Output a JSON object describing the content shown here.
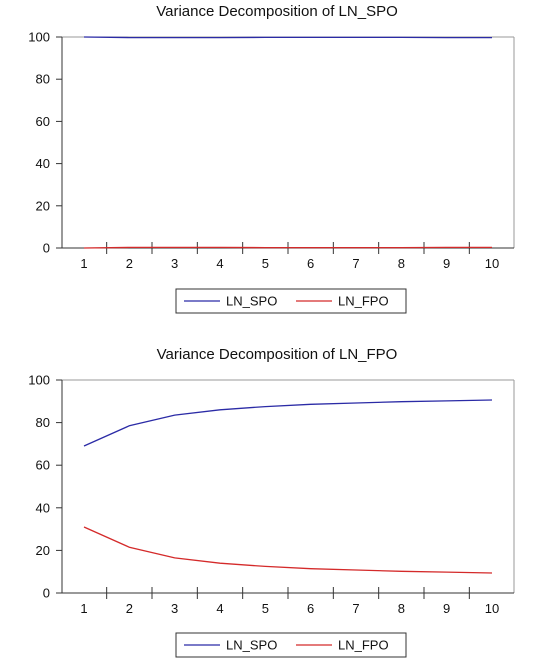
{
  "colors": {
    "series1": "#2b2ba6",
    "series2": "#d42a2a",
    "axis": "#333333",
    "frame": "#9a9a9a"
  },
  "chart_data": [
    {
      "type": "line",
      "title": "Variance Decomposition of LN_SPO",
      "xlabel": "",
      "ylabel": "",
      "x": [
        1,
        2,
        3,
        4,
        5,
        6,
        7,
        8,
        9,
        10
      ],
      "xticks": [
        "1",
        "2",
        "3",
        "4",
        "5",
        "6",
        "7",
        "8",
        "9",
        "10"
      ],
      "yticks": [
        "0",
        "20",
        "40",
        "60",
        "80",
        "100"
      ],
      "ylim": [
        0,
        100
      ],
      "grid": false,
      "legend": "bottom",
      "series": [
        {
          "name": "LN_SPO",
          "values": [
            100.0,
            99.7,
            99.7,
            99.7,
            99.8,
            99.8,
            99.8,
            99.8,
            99.7,
            99.7
          ]
        },
        {
          "name": "LN_FPO",
          "values": [
            0.0,
            0.3,
            0.3,
            0.3,
            0.2,
            0.2,
            0.2,
            0.2,
            0.3,
            0.3
          ]
        }
      ]
    },
    {
      "type": "line",
      "title": "Variance Decomposition of LN_FPO",
      "xlabel": "",
      "ylabel": "",
      "x": [
        1,
        2,
        3,
        4,
        5,
        6,
        7,
        8,
        9,
        10
      ],
      "xticks": [
        "1",
        "2",
        "3",
        "4",
        "5",
        "6",
        "7",
        "8",
        "9",
        "10"
      ],
      "yticks": [
        "0",
        "20",
        "40",
        "60",
        "80",
        "100"
      ],
      "ylim": [
        0,
        100
      ],
      "grid": false,
      "legend": "bottom",
      "series": [
        {
          "name": "LN_SPO",
          "values": [
            69.0,
            78.5,
            83.5,
            86.0,
            87.5,
            88.6,
            89.2,
            89.8,
            90.2,
            90.6
          ]
        },
        {
          "name": "LN_FPO",
          "values": [
            31.0,
            21.5,
            16.5,
            14.0,
            12.5,
            11.4,
            10.8,
            10.2,
            9.8,
            9.4
          ]
        }
      ]
    }
  ]
}
